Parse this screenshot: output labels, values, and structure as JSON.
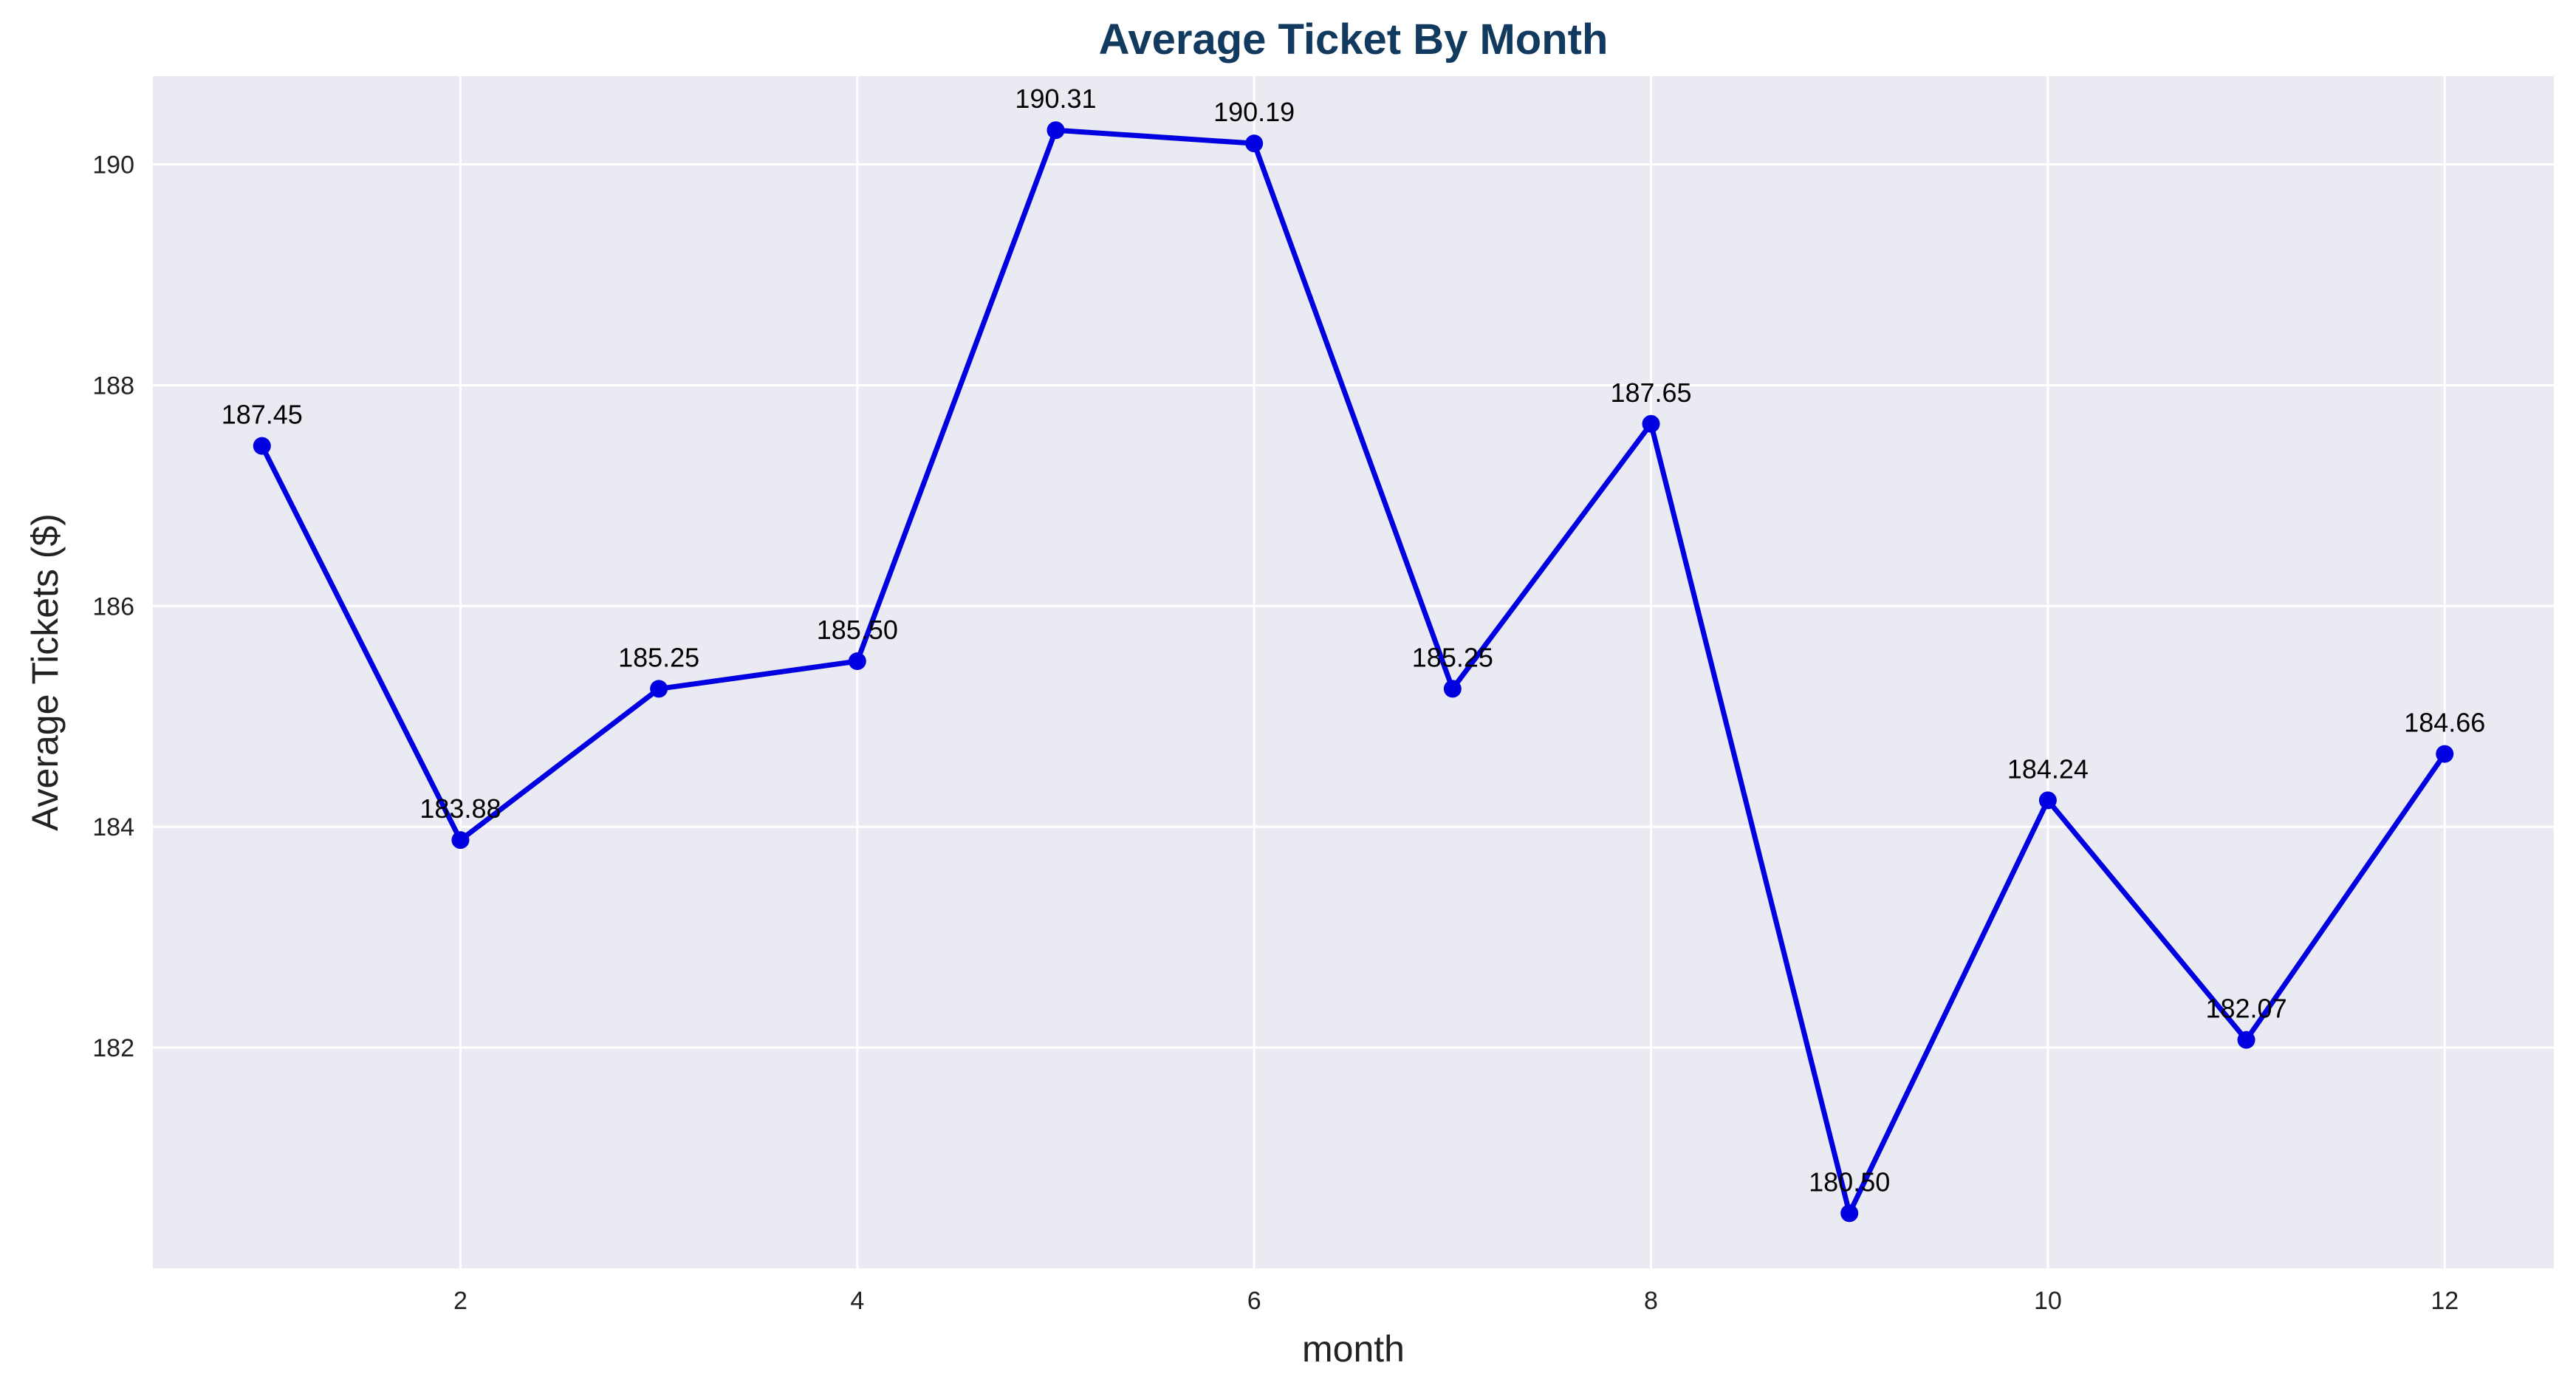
{
  "colors": {
    "title": "#123a5e",
    "plot_background": "#eaeaf2",
    "grid": "#ffffff",
    "line": "#0000e0",
    "marker": "#0000e0"
  },
  "chart_data": {
    "type": "line",
    "title": "Average Ticket By Month",
    "xlabel": "month",
    "ylabel": "Average Tickets ($)",
    "x": [
      1,
      2,
      3,
      4,
      5,
      6,
      7,
      8,
      9,
      10,
      11,
      12
    ],
    "series": [
      {
        "values": [
          187.45,
          183.88,
          185.25,
          185.5,
          190.31,
          190.19,
          185.25,
          187.65,
          180.5,
          184.24,
          182.07,
          184.66
        ]
      }
    ],
    "data_labels": [
      "187.45",
      "183.88",
      "185.25",
      "185.50",
      "190.31",
      "190.19",
      "185.25",
      "187.65",
      "180.50",
      "184.24",
      "182.07",
      "184.66"
    ],
    "x_ticks": [
      2,
      4,
      6,
      8,
      10,
      12
    ],
    "x_tick_labels": [
      "2",
      "4",
      "6",
      "8",
      "10",
      "12"
    ],
    "y_ticks": [
      182,
      184,
      186,
      188,
      190
    ],
    "y_tick_labels": [
      "182",
      "184",
      "186",
      "188",
      "190"
    ],
    "xlim": [
      0.45,
      12.55
    ],
    "ylim": [
      180.0,
      190.8
    ],
    "grid": true,
    "markers": true
  }
}
